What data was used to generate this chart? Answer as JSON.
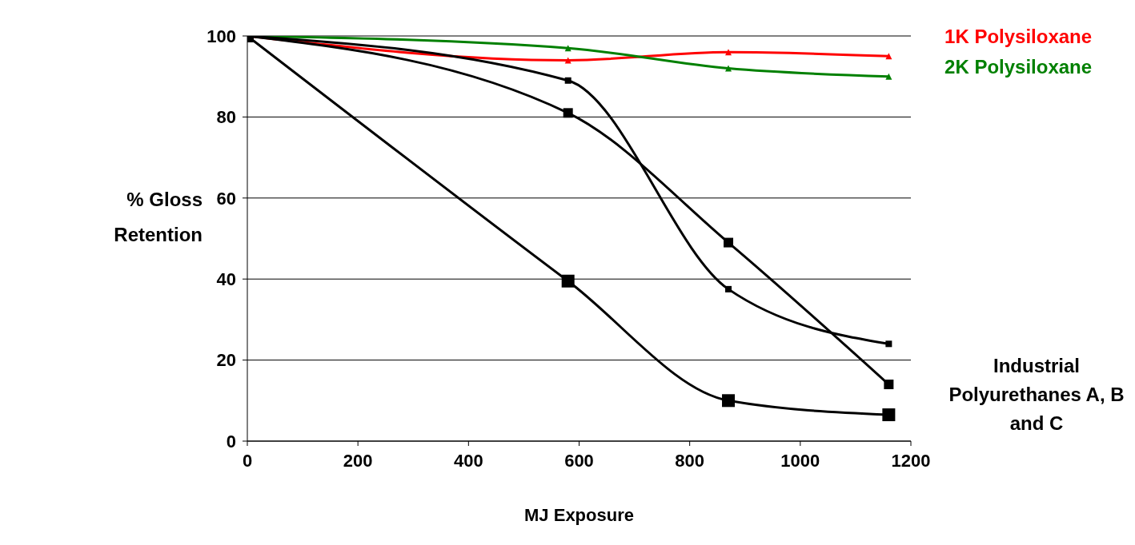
{
  "chart_data": {
    "type": "line",
    "xlabel": "MJ Exposure",
    "ylabel": "% Gloss Retention",
    "x": [
      0,
      580,
      870,
      1160
    ],
    "series": [
      {
        "name": "1K Polysiloxane",
        "color": "#ff0000",
        "values": [
          100,
          94,
          96,
          95
        ],
        "marker": "triangle"
      },
      {
        "name": "2K Polysiloxane",
        "color": "#008000",
        "values": [
          100,
          97,
          92,
          90
        ],
        "marker": "triangle"
      },
      {
        "color": "#000000",
        "values": [
          100,
          89,
          37.5,
          24
        ]
      },
      {
        "color": "#000000",
        "values": [
          100,
          81,
          49,
          14
        ]
      },
      {
        "color": "#000000",
        "values": [
          100,
          39.5,
          10,
          6.5
        ]
      }
    ],
    "xlim": [
      0,
      1200
    ],
    "xticks": [
      0,
      200,
      400,
      600,
      800,
      1000,
      1200
    ],
    "ylim": [
      0,
      100
    ],
    "yticks": [
      0,
      20,
      40,
      60,
      80,
      100
    ],
    "grid": "y",
    "legend": false,
    "marker": "square",
    "line_style": "solid",
    "annotations": [
      "Industrial Polyurethanes A, B and C"
    ]
  }
}
